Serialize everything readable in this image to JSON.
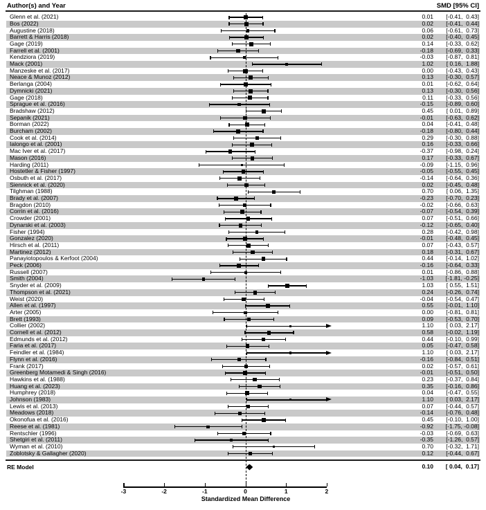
{
  "header": {
    "left": "Author(s) and Year",
    "right": "SMD [95% CI]"
  },
  "colors": {
    "stripe": "#c9c9c9",
    "ink": "#000000",
    "background": "#ffffff"
  },
  "chart_data": {
    "type": "forest",
    "xlabel": "Standardized Mean Difference",
    "x_ticks": [
      -3,
      -2,
      -1,
      0,
      1,
      2
    ],
    "xlim": [
      -3,
      2
    ],
    "zero_reference_line": 0,
    "row_shading": "alternating gray stripes on even rows",
    "summary": {
      "label": "RE Model",
      "est": 0.1,
      "lo": 0.04,
      "hi": 0.17
    },
    "studies": [
      {
        "label": "Glenn et al. (2021)",
        "est": 0.01,
        "lo": -0.41,
        "hi": 0.43
      },
      {
        "label": "Bos (2022)",
        "est": 0.02,
        "lo": -0.41,
        "hi": 0.44
      },
      {
        "label": "Augustine (2018)",
        "est": 0.06,
        "lo": -0.61,
        "hi": 0.73
      },
      {
        "label": "Barrett & Harris (2018)",
        "est": 0.02,
        "lo": -0.4,
        "hi": 0.45
      },
      {
        "label": "Gage (2019)",
        "est": 0.14,
        "lo": -0.33,
        "hi": 0.62
      },
      {
        "label": "Farrell et al. (2001)",
        "est": -0.18,
        "lo": -0.69,
        "hi": 0.33
      },
      {
        "label": "Kendziora (2019)",
        "est": -0.03,
        "lo": -0.87,
        "hi": 0.81
      },
      {
        "label": "Mack (2001)",
        "est": 1.02,
        "lo": 0.16,
        "hi": 1.88
      },
      {
        "label": "Manzeske et al. (2017)",
        "est": 0.0,
        "lo": -0.43,
        "hi": 0.43
      },
      {
        "label": "Neace & Munoz (2012)",
        "est": 0.13,
        "lo": -0.3,
        "hi": 0.57
      },
      {
        "label": "Berlanga (2004)",
        "est": 0.01,
        "lo": -0.62,
        "hi": 0.64
      },
      {
        "label": "Dymnicki (2021)",
        "est": 0.13,
        "lo": -0.3,
        "hi": 0.56
      },
      {
        "label": "Gage (2018)",
        "est": 0.11,
        "lo": -0.33,
        "hi": 0.56
      },
      {
        "label": "Sprague et al. (2016)",
        "est": -0.15,
        "lo": -0.89,
        "hi": 0.6
      },
      {
        "label": "Bradshaw (2012)",
        "est": 0.45,
        "lo": 0.01,
        "hi": 0.89
      },
      {
        "label": "Sepanik (2021)",
        "est": -0.01,
        "lo": -0.63,
        "hi": 0.62
      },
      {
        "label": "Borman (2022)",
        "est": 0.04,
        "lo": -0.41,
        "hi": 0.48
      },
      {
        "label": "Burcham (2002)",
        "est": -0.18,
        "lo": -0.8,
        "hi": 0.44
      },
      {
        "label": "Cook et al. (2014)",
        "est": 0.29,
        "lo": -0.3,
        "hi": 0.88
      },
      {
        "label": "Ialongo et al. (2001)",
        "est": 0.16,
        "lo": -0.33,
        "hi": 0.66
      },
      {
        "label": "Mac Iver et al. (2017)",
        "est": -0.37,
        "lo": -0.98,
        "hi": 0.24
      },
      {
        "label": "Mason (2016)",
        "est": 0.17,
        "lo": -0.33,
        "hi": 0.67
      },
      {
        "label": "Harding (2011)",
        "est": -0.09,
        "lo": -1.15,
        "hi": 0.96
      },
      {
        "label": "Hostetler & Fisher (1997)",
        "est": -0.05,
        "lo": -0.55,
        "hi": 0.45
      },
      {
        "label": "Osbuth et al. (2017)",
        "est": -0.14,
        "lo": -0.64,
        "hi": 0.36
      },
      {
        "label": "Siennick et al. (2020)",
        "est": 0.02,
        "lo": -0.45,
        "hi": 0.48
      },
      {
        "label": "Tilghman (1988)",
        "est": 0.7,
        "lo": 0.06,
        "hi": 1.35
      },
      {
        "label": "Brady et al. (2007)",
        "est": -0.23,
        "lo": -0.7,
        "hi": 0.23
      },
      {
        "label": "Bragdon (2010)",
        "est": -0.02,
        "lo": -0.66,
        "hi": 0.63
      },
      {
        "label": "Corrin et al. (2016)",
        "est": -0.07,
        "lo": -0.54,
        "hi": 0.39
      },
      {
        "label": "Crowder (2001)",
        "est": 0.07,
        "lo": -0.51,
        "hi": 0.66
      },
      {
        "label": "Dynarski et al. (2003)",
        "est": -0.12,
        "lo": -0.65,
        "hi": 0.4
      },
      {
        "label": "Fisher (1994)",
        "est": 0.28,
        "lo": -0.42,
        "hi": 0.98
      },
      {
        "label": "Gonzalez (2020)",
        "est": -0.01,
        "lo": -0.48,
        "hi": 0.45
      },
      {
        "label": "Hirsch et al. (2011)",
        "est": 0.07,
        "lo": -0.43,
        "hi": 0.57
      },
      {
        "label": "Martinez (2012)",
        "est": 0.18,
        "lo": -0.31,
        "hi": 0.67
      },
      {
        "label": "Panayiotopoulos & Kerfoot (2004)",
        "est": 0.44,
        "lo": -0.14,
        "hi": 1.02
      },
      {
        "label": "Peck (2006)",
        "est": -0.16,
        "lo": -0.64,
        "hi": 0.33
      },
      {
        "label": "Russell (2007)",
        "est": 0.01,
        "lo": -0.86,
        "hi": 0.88
      },
      {
        "label": "Smith (2004)",
        "est": -1.03,
        "lo": -1.81,
        "hi": -0.25
      },
      {
        "label": "Snyder et al. (2009)",
        "est": 1.03,
        "lo": 0.55,
        "hi": 1.51
      },
      {
        "label": "Thompson et al. (2021)",
        "est": 0.24,
        "lo": -0.26,
        "hi": 0.74
      },
      {
        "label": "Weist (2020)",
        "est": -0.04,
        "lo": -0.54,
        "hi": 0.47
      },
      {
        "label": "Allen et al. (1997)",
        "est": 0.55,
        "lo": -0.01,
        "hi": 1.1
      },
      {
        "label": "Arter (2005)",
        "est": 0.0,
        "lo": -0.81,
        "hi": 0.81
      },
      {
        "label": "Brett (1993)",
        "est": 0.09,
        "lo": -0.53,
        "hi": 0.7
      },
      {
        "label": "Collier (2002)",
        "est": 1.1,
        "lo": 0.03,
        "hi": 2.17
      },
      {
        "label": "Cornell et al. (2012)",
        "est": 0.58,
        "lo": -0.02,
        "hi": 1.19
      },
      {
        "label": "Edmunds et al. (2012)",
        "est": 0.44,
        "lo": -0.1,
        "hi": 0.99
      },
      {
        "label": "Faria et al. (2017)",
        "est": 0.05,
        "lo": -0.47,
        "hi": 0.58
      },
      {
        "label": "Feindler et al. (1984)",
        "est": 1.1,
        "lo": 0.03,
        "hi": 2.17
      },
      {
        "label": "Flynn et al. (2016)",
        "est": -0.16,
        "lo": -0.84,
        "hi": 0.51
      },
      {
        "label": "Frank (2017)",
        "est": 0.02,
        "lo": -0.57,
        "hi": 0.61
      },
      {
        "label": "Greenberg Motamedi & Singh (2016)",
        "est": -0.01,
        "lo": -0.51,
        "hi": 0.5
      },
      {
        "label": "Hawkins et al. (1988)",
        "est": 0.23,
        "lo": -0.37,
        "hi": 0.84
      },
      {
        "label": "Huang et al. (2023)",
        "est": 0.35,
        "lo": -0.16,
        "hi": 0.86
      },
      {
        "label": "Humphrey (2018)",
        "est": 0.04,
        "lo": -0.47,
        "hi": 0.55
      },
      {
        "label": "Johnson (1983)",
        "est": 1.1,
        "lo": 0.03,
        "hi": 2.17
      },
      {
        "label": "Lewis et al. (2013)",
        "est": 0.07,
        "lo": -0.44,
        "hi": 0.57
      },
      {
        "label": "Meadows (2018)",
        "est": -0.14,
        "lo": -0.76,
        "hi": 0.48
      },
      {
        "label": "Okonofua et al. (2016)",
        "est": 0.45,
        "lo": -0.1,
        "hi": 1.0
      },
      {
        "label": "Reese et al. (1981)",
        "est": -0.92,
        "lo": -1.75,
        "hi": -0.08
      },
      {
        "label": "Rentschler (1996)",
        "est": -0.03,
        "lo": -0.69,
        "hi": 0.63
      },
      {
        "label": "Shetgiri et al. (2011)",
        "est": -0.35,
        "lo": -1.26,
        "hi": 0.57
      },
      {
        "label": "Wyman et al. (2010)",
        "est": 0.7,
        "lo": -0.32,
        "hi": 1.71
      },
      {
        "label": "Zoblotsky & Gallagher (2020)",
        "est": 0.12,
        "lo": -0.44,
        "hi": 0.67
      }
    ]
  }
}
